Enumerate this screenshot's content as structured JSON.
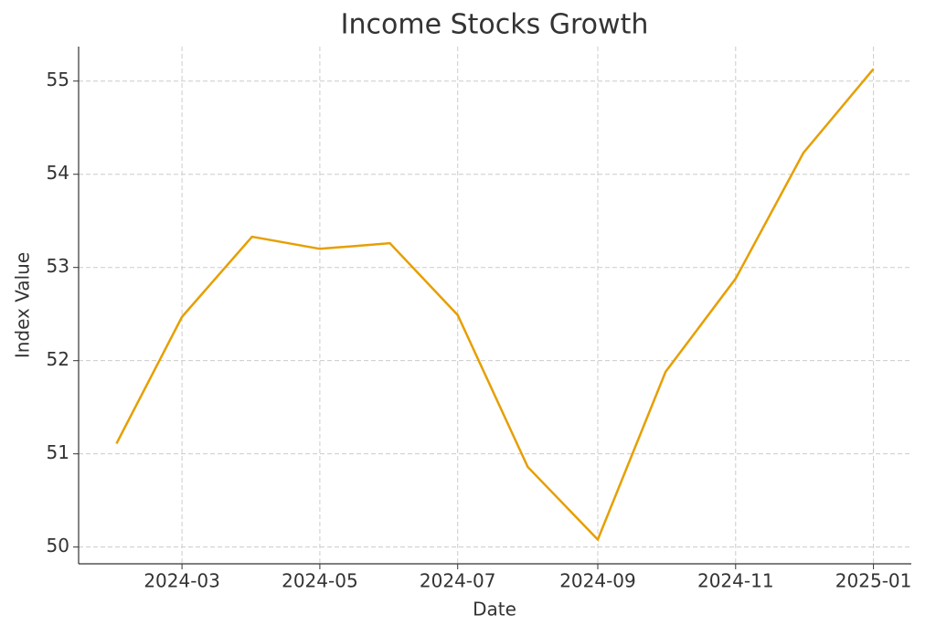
{
  "chart_data": {
    "type": "line",
    "title": "Income Stocks Growth",
    "x_label": "Date",
    "y_label": "Index Value",
    "x": [
      "2024-02",
      "2024-03",
      "2024-04",
      "2024-05",
      "2024-06",
      "2024-07",
      "2024-08",
      "2024-09",
      "2024-10",
      "2024-11",
      "2024-12",
      "2025-01"
    ],
    "series": [
      {
        "name": "Income Stocks",
        "color": "#e69f00",
        "values": [
          51.11,
          52.47,
          53.33,
          53.2,
          53.26,
          52.49,
          50.86,
          50.08,
          51.88,
          52.88,
          54.23,
          55.13
        ]
      }
    ],
    "xlim": [
      "2024-02",
      "2025-01"
    ],
    "xticks": [
      "2024-03",
      "2024-05",
      "2024-07",
      "2024-09",
      "2024-11",
      "2025-01"
    ],
    "ylim": [
      49.82,
      55.37
    ],
    "yticks": [
      50,
      51,
      52,
      53,
      54,
      55
    ],
    "grid": true,
    "legend": false
  }
}
